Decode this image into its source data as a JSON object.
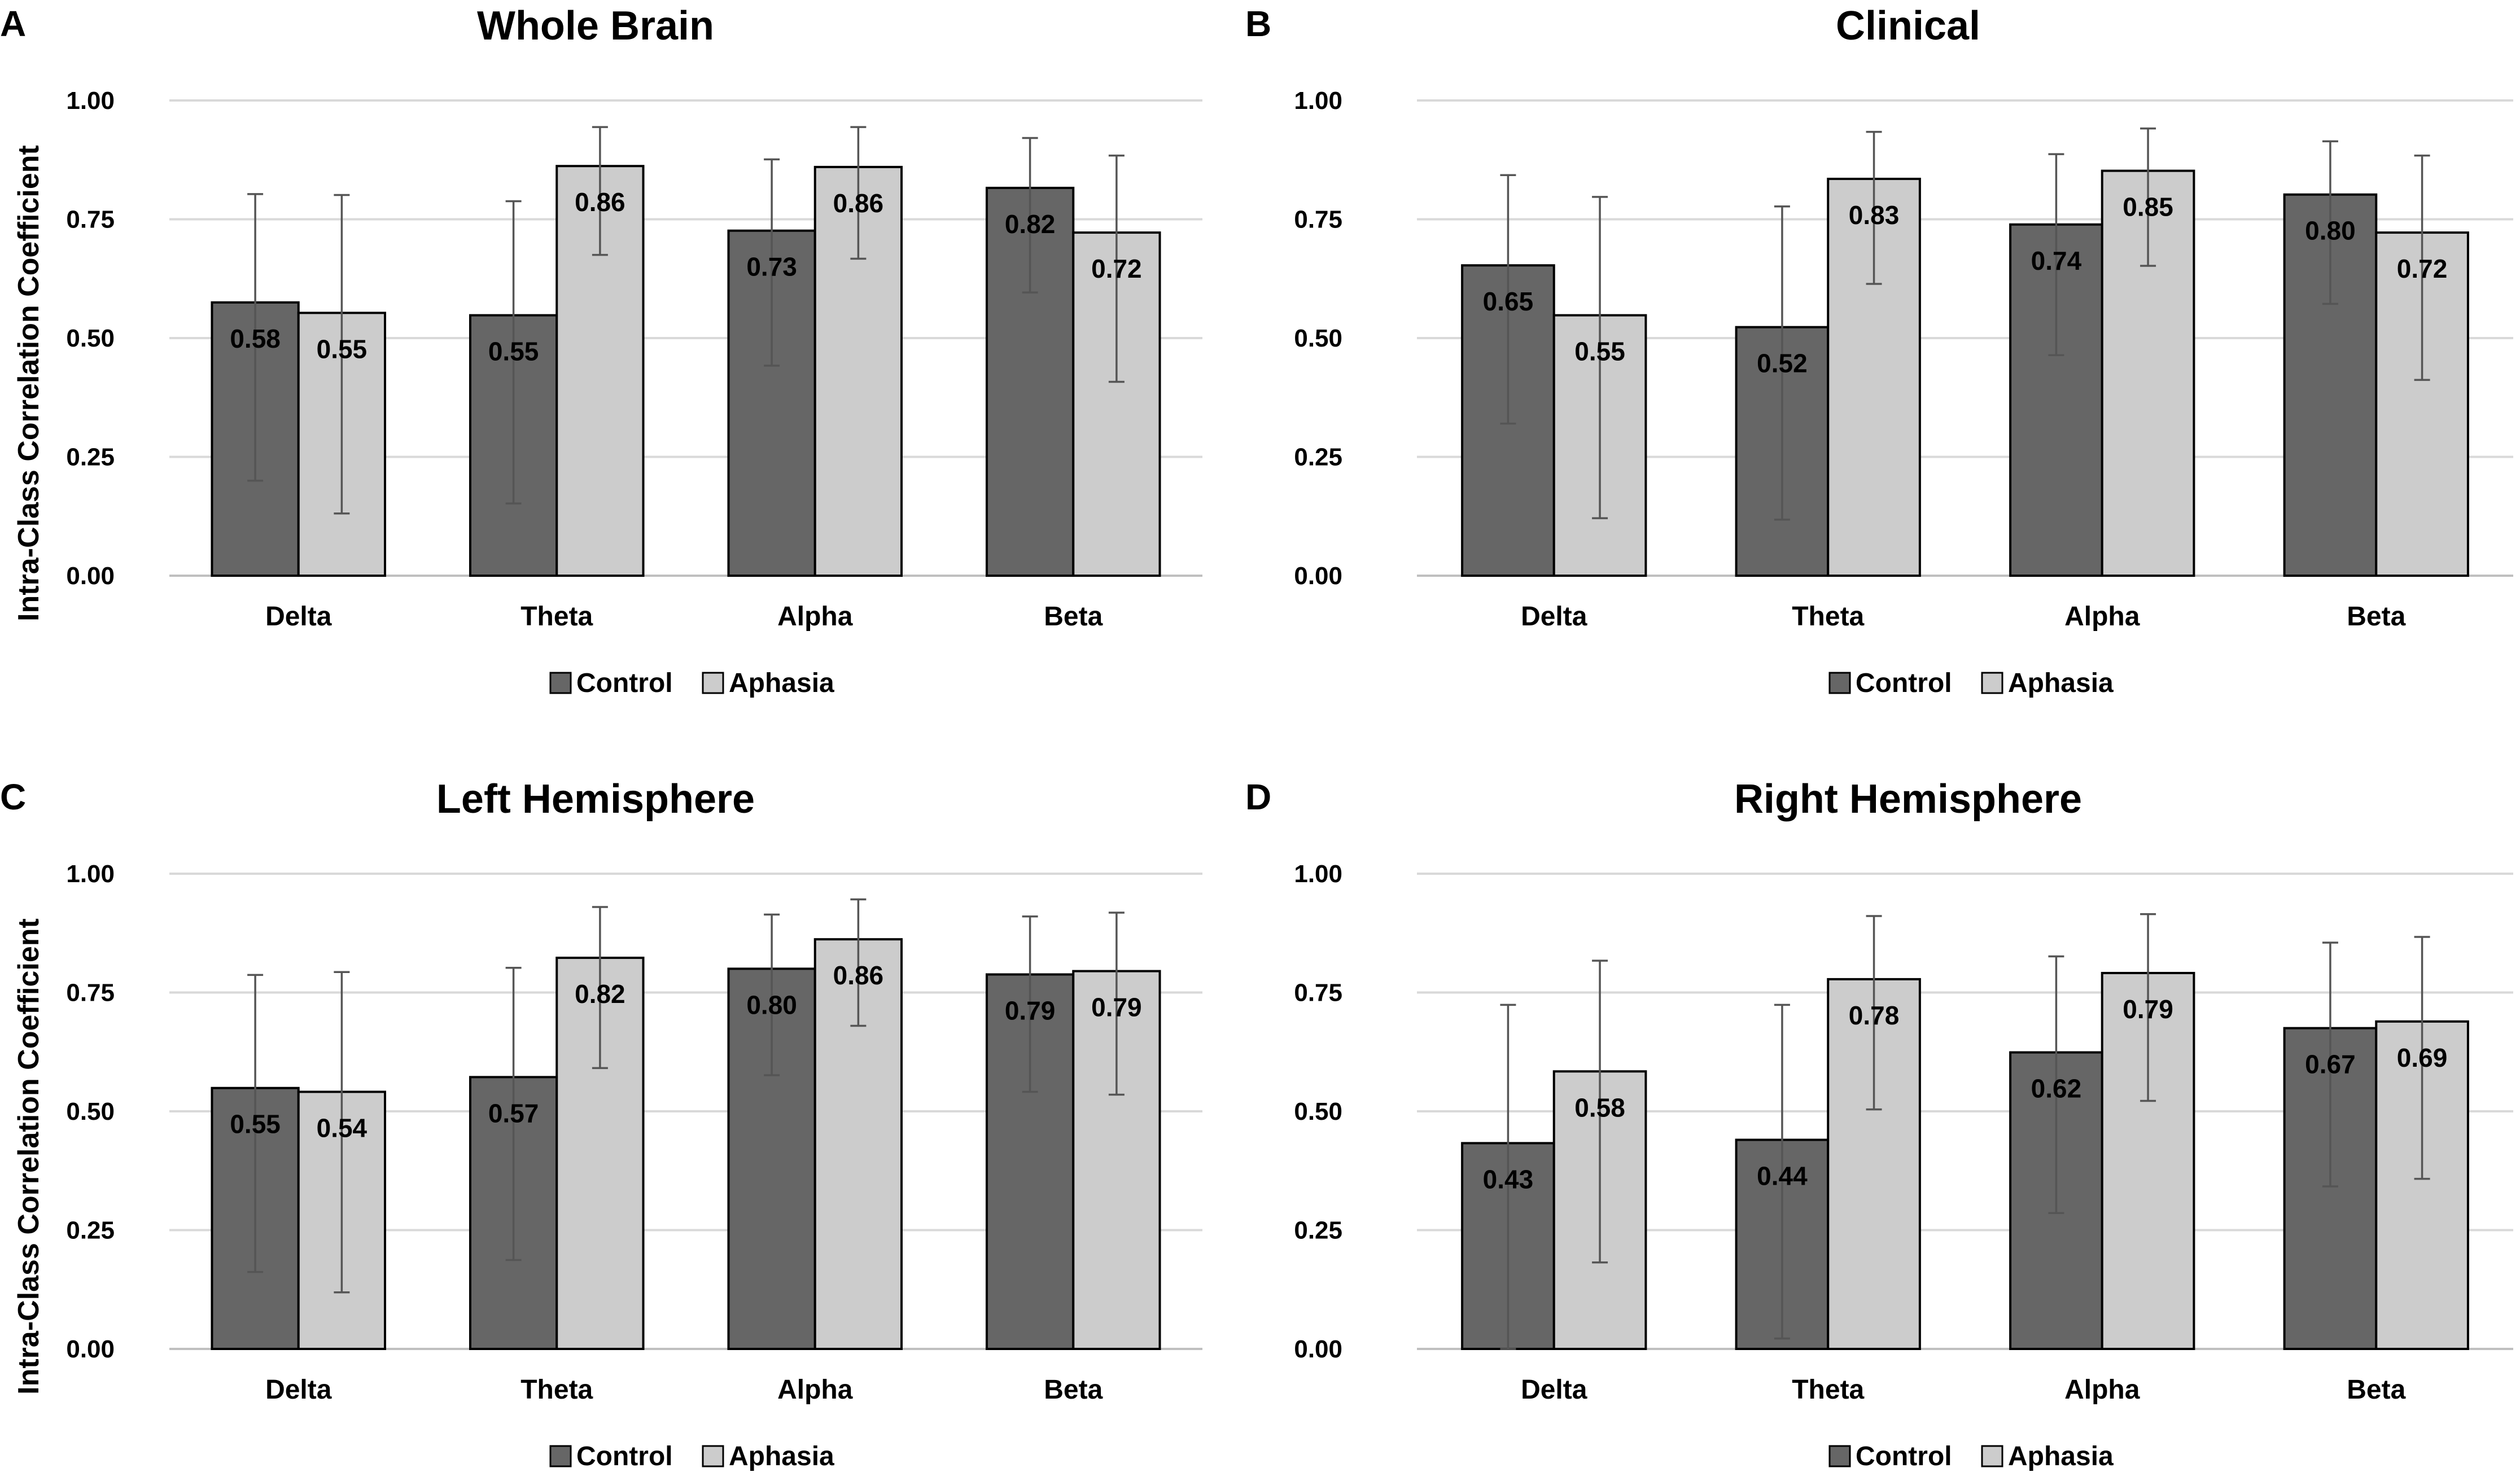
{
  "chart_data": [
    {
      "type": "bar",
      "panel": "A",
      "title": "Whole Brain",
      "ylabel": "Intra-Class Correlation Coefficient",
      "xlabel": "",
      "ylim": [
        0,
        1
      ],
      "yticks": [
        "0.00",
        "0.25",
        "0.50",
        "0.75",
        "1.00"
      ],
      "categories": [
        "Delta",
        "Theta",
        "Alpha",
        "Beta"
      ],
      "series": [
        {
          "name": "Control",
          "color": "#666666",
          "values": [
            0.575,
            0.548,
            0.726,
            0.816
          ],
          "labels": [
            "0.58",
            "0.55",
            "0.73",
            "0.82"
          ],
          "ci_low": [
            0.2,
            0.152,
            0.442,
            0.596
          ],
          "ci_high": [
            0.803,
            0.788,
            0.876,
            0.921
          ]
        },
        {
          "name": "Aphasia",
          "color": "#cccccc",
          "values": [
            0.553,
            0.862,
            0.86,
            0.722
          ],
          "labels": [
            "0.55",
            "0.86",
            "0.86",
            "0.72"
          ],
          "ci_low": [
            0.131,
            0.675,
            0.667,
            0.408
          ],
          "ci_high": [
            0.801,
            0.944,
            0.944,
            0.884
          ]
        }
      ],
      "legend": [
        "Control",
        "Aphasia"
      ],
      "legend_position": "bottom",
      "grid": true
    },
    {
      "type": "bar",
      "panel": "B",
      "title": "Clinical",
      "ylabel": "",
      "xlabel": "",
      "ylim": [
        0,
        1
      ],
      "yticks": [
        "0.00",
        "0.25",
        "0.50",
        "0.75",
        "1.00"
      ],
      "categories": [
        "Delta",
        "Theta",
        "Alpha",
        "Beta"
      ],
      "series": [
        {
          "name": "Control",
          "color": "#666666",
          "values": [
            0.653,
            0.523,
            0.739,
            0.802
          ],
          "labels": [
            "0.65",
            "0.52",
            "0.74",
            "0.80"
          ],
          "ci_low": [
            0.32,
            0.118,
            0.464,
            0.572
          ],
          "ci_high": [
            0.843,
            0.777,
            0.887,
            0.914
          ]
        },
        {
          "name": "Aphasia",
          "color": "#cccccc",
          "values": [
            0.548,
            0.835,
            0.852,
            0.722
          ],
          "labels": [
            "0.55",
            "0.83",
            "0.85",
            "0.72"
          ],
          "ci_low": [
            0.121,
            0.614,
            0.652,
            0.412
          ],
          "ci_high": [
            0.797,
            0.934,
            0.941,
            0.884
          ]
        }
      ],
      "legend": [
        "Control",
        "Aphasia"
      ],
      "legend_position": "bottom",
      "grid": true
    },
    {
      "type": "bar",
      "panel": "C",
      "title": "Left Hemisphere",
      "ylabel": "Intra-Class Correlation Coefficient",
      "xlabel": "",
      "ylim": [
        0,
        1
      ],
      "yticks": [
        "0.00",
        "0.25",
        "0.50",
        "0.75",
        "1.00"
      ],
      "categories": [
        "Delta",
        "Theta",
        "Alpha",
        "Beta"
      ],
      "series": [
        {
          "name": "Control",
          "color": "#666666",
          "values": [
            0.549,
            0.572,
            0.8,
            0.788
          ],
          "labels": [
            "0.55",
            "0.57",
            "0.80",
            "0.79"
          ],
          "ci_low": [
            0.162,
            0.187,
            0.576,
            0.541
          ],
          "ci_high": [
            0.787,
            0.802,
            0.914,
            0.91
          ]
        },
        {
          "name": "Aphasia",
          "color": "#cccccc",
          "values": [
            0.541,
            0.823,
            0.862,
            0.795
          ],
          "labels": [
            "0.54",
            "0.82",
            "0.86",
            "0.79"
          ],
          "ci_low": [
            0.119,
            0.591,
            0.68,
            0.535
          ],
          "ci_high": [
            0.793,
            0.93,
            0.946,
            0.918
          ]
        }
      ],
      "legend": [
        "Control",
        "Aphasia"
      ],
      "legend_position": "bottom",
      "grid": true
    },
    {
      "type": "bar",
      "panel": "D",
      "title": "Right Hemisphere",
      "ylabel": "",
      "xlabel": "",
      "ylim": [
        0,
        1
      ],
      "yticks": [
        "0.00",
        "0.25",
        "0.50",
        "0.75",
        "1.00"
      ],
      "categories": [
        "Delta",
        "Theta",
        "Alpha",
        "Beta"
      ],
      "series": [
        {
          "name": "Control",
          "color": "#666666",
          "values": [
            0.433,
            0.44,
            0.624,
            0.675
          ],
          "labels": [
            "0.43",
            "0.44",
            "0.62",
            "0.67"
          ],
          "ci_low": [
            0.0,
            0.022,
            0.286,
            0.342
          ],
          "ci_high": [
            0.724,
            0.724,
            0.826,
            0.855
          ]
        },
        {
          "name": "Aphasia",
          "color": "#cccccc",
          "values": [
            0.584,
            0.778,
            0.791,
            0.689
          ],
          "labels": [
            "0.58",
            "0.78",
            "0.79",
            "0.69"
          ],
          "ci_low": [
            0.182,
            0.504,
            0.522,
            0.358
          ],
          "ci_high": [
            0.817,
            0.911,
            0.915,
            0.867
          ]
        }
      ],
      "legend": [
        "Control",
        "Aphasia"
      ],
      "legend_position": "bottom",
      "grid": true
    }
  ]
}
